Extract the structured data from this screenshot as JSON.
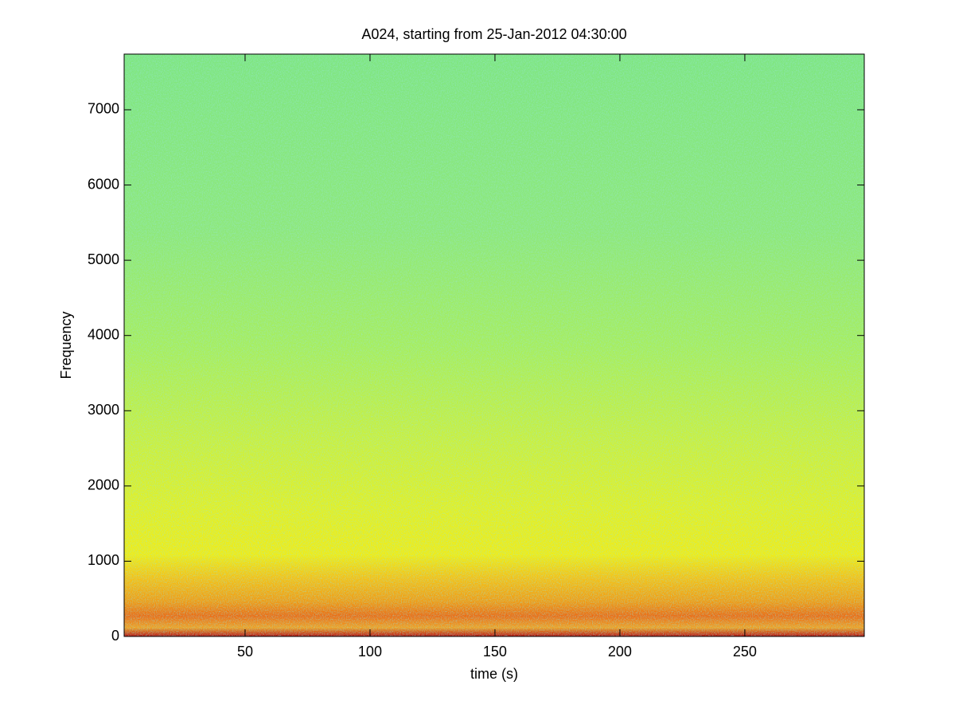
{
  "chart_data": {
    "type": "spectrogram",
    "title": "A024, starting from 25-Jan-2012 04:30:00",
    "x_label": "time (s)",
    "y_label": "Frequency",
    "xlim": [
      1.6,
      297.8
    ],
    "ylim": [
      0,
      7740
    ],
    "xticks": [
      50,
      100,
      150,
      200,
      250
    ],
    "yticks": [
      0,
      1000,
      2000,
      3000,
      4000,
      5000,
      6000,
      7000
    ]
  }
}
